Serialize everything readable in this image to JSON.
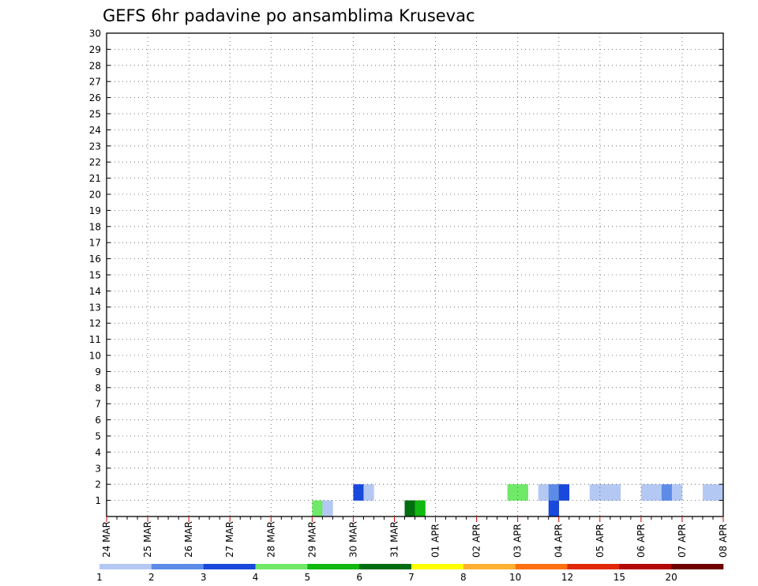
{
  "chart_data": {
    "type": "heatmap",
    "title": "GEFS 6hr padavine po ansamblima Krusevac",
    "y_members": [
      "1",
      "2",
      "3",
      "4",
      "5",
      "6",
      "7",
      "8",
      "9",
      "10",
      "11",
      "12",
      "13",
      "14",
      "15",
      "16",
      "17",
      "18",
      "19",
      "20",
      "21",
      "22",
      "23",
      "24",
      "25",
      "26",
      "27",
      "28",
      "29",
      "30"
    ],
    "x_tick_labels": [
      "24 MAR",
      "25 MAR",
      "26 MAR",
      "27 MAR",
      "28 MAR",
      "29 MAR",
      "30 MAR",
      "31 MAR",
      "01 APR",
      "02 APR",
      "03 APR",
      "04 APR",
      "05 APR",
      "06 APR",
      "07 APR",
      "08 APR"
    ],
    "x_steps_per_day": 4,
    "x_total_steps": 60,
    "grid": true,
    "colorbar": {
      "placement": "bottom",
      "levels": [
        "1",
        "2",
        "3",
        "4",
        "5",
        "6",
        "7",
        "8",
        "10",
        "12",
        "15",
        "20"
      ],
      "colors": [
        "#b4c8f4",
        "#5c8ce8",
        "#1848dc",
        "#70e868",
        "#10b810",
        "#006e10",
        "#ffff00",
        "#ffb030",
        "#ff7010",
        "#e02808",
        "#b40808",
        "#6e0000"
      ]
    },
    "cells": [
      {
        "step": 20,
        "member": 0,
        "class": 3
      },
      {
        "step": 21,
        "member": 0,
        "class": 0
      },
      {
        "step": 29,
        "member": 0,
        "class": 5
      },
      {
        "step": 30,
        "member": 0,
        "class": 4
      },
      {
        "step": 43,
        "member": 0,
        "class": 2
      },
      {
        "step": 24,
        "member": 1,
        "class": 2
      },
      {
        "step": 25,
        "member": 1,
        "class": 0
      },
      {
        "step": 39,
        "member": 1,
        "class": 3
      },
      {
        "step": 40,
        "member": 1,
        "class": 3
      },
      {
        "step": 42,
        "member": 1,
        "class": 0
      },
      {
        "step": 43,
        "member": 1,
        "class": 1
      },
      {
        "step": 44,
        "member": 1,
        "class": 2
      },
      {
        "step": 47,
        "member": 1,
        "class": 0
      },
      {
        "step": 48,
        "member": 1,
        "class": 0
      },
      {
        "step": 49,
        "member": 1,
        "class": 0
      },
      {
        "step": 52,
        "member": 1,
        "class": 0
      },
      {
        "step": 53,
        "member": 1,
        "class": 0
      },
      {
        "step": 54,
        "member": 1,
        "class": 1
      },
      {
        "step": 55,
        "member": 1,
        "class": 0
      },
      {
        "step": 58,
        "member": 1,
        "class": 0
      },
      {
        "step": 59,
        "member": 1,
        "class": 0
      }
    ]
  }
}
